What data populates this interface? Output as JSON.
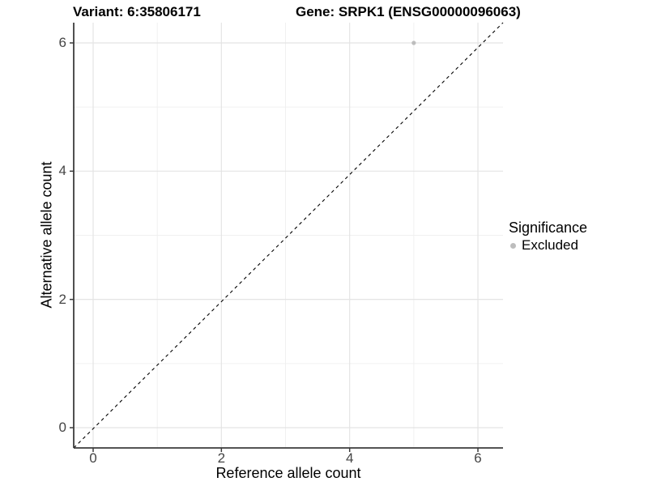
{
  "titles": {
    "variant": "Variant: 6:35806171",
    "gene": "Gene: SRPK1 (ENSG00000096063)"
  },
  "chart_data": {
    "type": "scatter",
    "xlabel": "Reference allele count",
    "ylabel": "Alternative allele count",
    "xlim": [
      -0.3,
      6.3
    ],
    "ylim": [
      -0.3,
      6.3
    ],
    "x_ticks": [
      0,
      2,
      4,
      6
    ],
    "y_ticks": [
      0,
      2,
      4,
      6
    ],
    "x_minor_ticks": [
      1,
      3,
      5
    ],
    "y_minor_ticks": [
      1,
      3,
      5
    ],
    "grid": true,
    "points": [
      {
        "x": 5,
        "y": 6,
        "series": "Excluded",
        "color": "#bdbdbd"
      }
    ],
    "reference_line": {
      "kind": "identity-abline",
      "slope": 1,
      "intercept": 0,
      "style": "dashed",
      "color": "#000000"
    },
    "legend": {
      "title": "Significance",
      "position": "right",
      "entries": [
        {
          "label": "Excluded",
          "color": "#bdbdbd"
        }
      ]
    }
  },
  "colors": {
    "background": "#ffffff",
    "grid_major": "#e4e4e4",
    "grid_minor": "#f0f0f0",
    "axis_line": "#3c3c3c",
    "tick_text": "#454545",
    "point": "#bdbdbd"
  }
}
